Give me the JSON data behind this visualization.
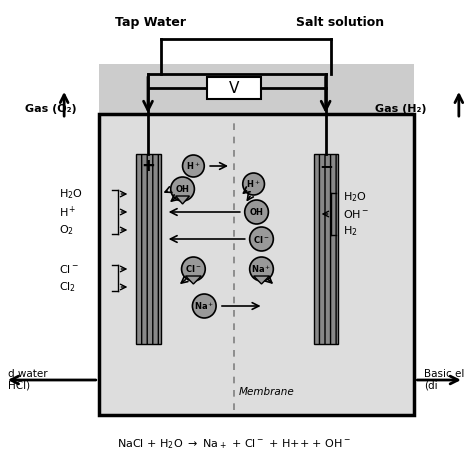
{
  "tap_water_label": "Tap Water",
  "salt_solution_label": "Salt solution",
  "voltage_label": "V",
  "membrane_label": "Membrane",
  "gas_o2_label": "Gas (O₂)",
  "gas_h2_label": "Gas (H₂)",
  "acid_label_line1": "d water",
  "acid_label_line2": "HCl)",
  "basic_label_line1": "Basic el",
  "basic_label_line2": "(di",
  "chamber_facecolor": "#d8d8d8",
  "chamber_edgecolor": "#000000",
  "electrode_facecolor": "#888888",
  "bg_color": "#ffffff",
  "gray_bg": "#cccccc"
}
